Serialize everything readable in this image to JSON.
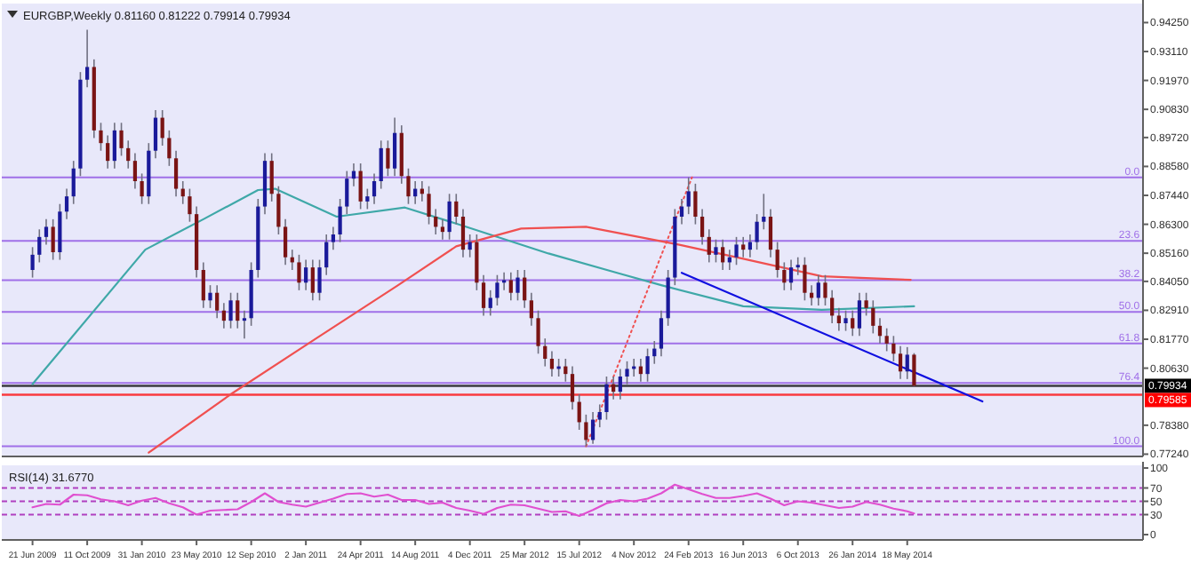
{
  "chart_data": [
    {
      "type": "candlestick",
      "title": "EURGBP,Weekly  0.81160 0.81222 0.79914 0.79934",
      "tick_labels": "y",
      "xlim": [
        "2009-04-19",
        "2015-09-13"
      ],
      "ylim": [
        0.7715,
        0.95
      ],
      "yticks": [
        {
          "value": 0.9425,
          "label": "0.94250"
        },
        {
          "value": 0.9311,
          "label": "0.93110"
        },
        {
          "value": 0.9197,
          "label": "0.91970"
        },
        {
          "value": 0.9083,
          "label": "0.90830"
        },
        {
          "value": 0.8972,
          "label": "0.89720"
        },
        {
          "value": 0.8858,
          "label": "0.88580"
        },
        {
          "value": 0.8744,
          "label": "0.87440"
        },
        {
          "value": 0.863,
          "label": "0.86300"
        },
        {
          "value": 0.8516,
          "label": "0.85160"
        },
        {
          "value": 0.8405,
          "label": "0.84050"
        },
        {
          "value": 0.8291,
          "label": "0.82910"
        },
        {
          "value": 0.8177,
          "label": "0.81770"
        },
        {
          "value": 0.8063,
          "label": "0.80630"
        },
        {
          "value": 0.7838,
          "label": "0.78380"
        },
        {
          "value": 0.7724,
          "label": "0.77240"
        }
      ],
      "x": [
        "2009-06-21",
        "2009-07-05",
        "2009-07-19",
        "2009-08-02",
        "2009-08-16",
        "2009-08-30",
        "2009-09-13",
        "2009-09-27",
        "2009-10-11",
        "2009-10-25",
        "2009-11-08",
        "2009-11-22",
        "2009-12-06",
        "2009-12-20",
        "2010-01-03",
        "2010-01-17",
        "2010-01-31",
        "2010-02-14",
        "2010-02-28",
        "2010-03-14",
        "2010-03-28",
        "2010-04-11",
        "2010-04-25",
        "2010-05-09",
        "2010-05-23",
        "2010-06-06",
        "2010-06-20",
        "2010-07-04",
        "2010-07-18",
        "2010-08-01",
        "2010-08-15",
        "2010-08-29",
        "2010-09-12",
        "2010-09-26",
        "2010-10-10",
        "2010-10-24",
        "2010-11-07",
        "2010-11-21",
        "2010-12-05",
        "2010-12-19",
        "2011-01-02",
        "2011-01-16",
        "2011-01-30",
        "2011-02-13",
        "2011-02-27",
        "2011-03-13",
        "2011-03-27",
        "2011-04-10",
        "2011-04-24",
        "2011-05-08",
        "2011-05-22",
        "2011-06-05",
        "2011-06-19",
        "2011-07-03",
        "2011-07-17",
        "2011-07-31",
        "2011-08-14",
        "2011-08-28",
        "2011-09-11",
        "2011-09-25",
        "2011-10-09",
        "2011-10-23",
        "2011-11-06",
        "2011-11-20",
        "2011-12-04",
        "2011-12-18",
        "2012-01-01",
        "2012-01-15",
        "2012-01-29",
        "2012-02-12",
        "2012-02-26",
        "2012-03-11",
        "2012-03-25",
        "2012-04-08",
        "2012-04-22",
        "2012-05-06",
        "2012-05-20",
        "2012-06-03",
        "2012-06-17",
        "2012-07-01",
        "2012-07-15",
        "2012-07-29",
        "2012-08-12",
        "2012-08-26",
        "2012-09-09",
        "2012-09-23",
        "2012-10-07",
        "2012-10-21",
        "2012-11-04",
        "2012-11-18",
        "2012-12-02",
        "2012-12-16",
        "2012-12-30",
        "2013-01-13",
        "2013-01-27",
        "2013-02-10",
        "2013-02-24",
        "2013-03-10",
        "2013-03-24",
        "2013-04-07",
        "2013-04-21",
        "2013-05-05",
        "2013-05-19",
        "2013-06-02",
        "2013-06-16",
        "2013-06-30",
        "2013-07-14",
        "2013-07-28",
        "2013-08-11",
        "2013-08-25",
        "2013-09-08",
        "2013-09-22",
        "2013-10-06",
        "2013-10-20",
        "2013-11-03",
        "2013-11-17",
        "2013-12-01",
        "2013-12-15",
        "2013-12-29",
        "2014-01-12",
        "2014-01-26",
        "2014-02-09",
        "2014-02-23",
        "2014-03-09",
        "2014-03-23",
        "2014-04-06",
        "2014-04-20",
        "2014-05-04",
        "2014-05-18",
        "2014-06-01"
      ],
      "ohlc": [
        [
          0.845,
          0.854,
          0.842,
          0.851
        ],
        [
          0.851,
          0.861,
          0.848,
          0.858
        ],
        [
          0.858,
          0.865,
          0.855,
          0.862
        ],
        [
          0.862,
          0.865,
          0.849,
          0.852
        ],
        [
          0.852,
          0.871,
          0.849,
          0.868
        ],
        [
          0.868,
          0.877,
          0.865,
          0.874
        ],
        [
          0.874,
          0.888,
          0.871,
          0.885
        ],
        [
          0.885,
          0.923,
          0.882,
          0.92
        ],
        [
          0.92,
          0.9397,
          0.917,
          0.925
        ],
        [
          0.925,
          0.928,
          0.897,
          0.9
        ],
        [
          0.9,
          0.903,
          0.892,
          0.895
        ],
        [
          0.895,
          0.898,
          0.885,
          0.888
        ],
        [
          0.888,
          0.903,
          0.885,
          0.9
        ],
        [
          0.9,
          0.903,
          0.89,
          0.893
        ],
        [
          0.893,
          0.896,
          0.885,
          0.888
        ],
        [
          0.888,
          0.891,
          0.877,
          0.88
        ],
        [
          0.88,
          0.883,
          0.871,
          0.874
        ],
        [
          0.874,
          0.895,
          0.871,
          0.892
        ],
        [
          0.892,
          0.908,
          0.889,
          0.905
        ],
        [
          0.905,
          0.908,
          0.894,
          0.897
        ],
        [
          0.897,
          0.9,
          0.886,
          0.889
        ],
        [
          0.889,
          0.892,
          0.874,
          0.877
        ],
        [
          0.877,
          0.88,
          0.871,
          0.874
        ],
        [
          0.874,
          0.877,
          0.864,
          0.867
        ],
        [
          0.867,
          0.87,
          0.842,
          0.845
        ],
        [
          0.845,
          0.848,
          0.83,
          0.833
        ],
        [
          0.833,
          0.839,
          0.83,
          0.836
        ],
        [
          0.836,
          0.839,
          0.826,
          0.829
        ],
        [
          0.829,
          0.832,
          0.822,
          0.825
        ],
        [
          0.825,
          0.836,
          0.822,
          0.833
        ],
        [
          0.833,
          0.836,
          0.822,
          0.825
        ],
        [
          0.825,
          0.829,
          0.818,
          0.826
        ],
        [
          0.826,
          0.848,
          0.823,
          0.845
        ],
        [
          0.845,
          0.873,
          0.842,
          0.87
        ],
        [
          0.87,
          0.891,
          0.867,
          0.888
        ],
        [
          0.888,
          0.891,
          0.872,
          0.875
        ],
        [
          0.875,
          0.878,
          0.859,
          0.862
        ],
        [
          0.862,
          0.865,
          0.847,
          0.85
        ],
        [
          0.85,
          0.853,
          0.845,
          0.848
        ],
        [
          0.848,
          0.851,
          0.837,
          0.84
        ],
        [
          0.84,
          0.849,
          0.837,
          0.846
        ],
        [
          0.846,
          0.849,
          0.833,
          0.836
        ],
        [
          0.836,
          0.849,
          0.833,
          0.846
        ],
        [
          0.846,
          0.859,
          0.843,
          0.856
        ],
        [
          0.856,
          0.862,
          0.853,
          0.859
        ],
        [
          0.859,
          0.873,
          0.856,
          0.87
        ],
        [
          0.87,
          0.884,
          0.867,
          0.881
        ],
        [
          0.881,
          0.887,
          0.878,
          0.884
        ],
        [
          0.884,
          0.887,
          0.869,
          0.872
        ],
        [
          0.872,
          0.877,
          0.869,
          0.874
        ],
        [
          0.874,
          0.883,
          0.871,
          0.88
        ],
        [
          0.88,
          0.896,
          0.877,
          0.893
        ],
        [
          0.893,
          0.896,
          0.882,
          0.885
        ],
        [
          0.885,
          0.905,
          0.882,
          0.899
        ],
        [
          0.899,
          0.902,
          0.879,
          0.882
        ],
        [
          0.882,
          0.885,
          0.871,
          0.874
        ],
        [
          0.874,
          0.88,
          0.871,
          0.877
        ],
        [
          0.877,
          0.88,
          0.872,
          0.875
        ],
        [
          0.875,
          0.878,
          0.863,
          0.866
        ],
        [
          0.866,
          0.869,
          0.859,
          0.862
        ],
        [
          0.862,
          0.865,
          0.857,
          0.86
        ],
        [
          0.86,
          0.875,
          0.857,
          0.872
        ],
        [
          0.872,
          0.875,
          0.863,
          0.866
        ],
        [
          0.866,
          0.869,
          0.85,
          0.853
        ],
        [
          0.853,
          0.859,
          0.85,
          0.856
        ],
        [
          0.856,
          0.859,
          0.837,
          0.84
        ],
        [
          0.84,
          0.843,
          0.827,
          0.83
        ],
        [
          0.83,
          0.837,
          0.827,
          0.834
        ],
        [
          0.834,
          0.843,
          0.831,
          0.84
        ],
        [
          0.84,
          0.844,
          0.837,
          0.841
        ],
        [
          0.841,
          0.844,
          0.833,
          0.836
        ],
        [
          0.836,
          0.845,
          0.833,
          0.842
        ],
        [
          0.842,
          0.845,
          0.83,
          0.833
        ],
        [
          0.833,
          0.836,
          0.823,
          0.826
        ],
        [
          0.826,
          0.829,
          0.812,
          0.815
        ],
        [
          0.815,
          0.818,
          0.807,
          0.81
        ],
        [
          0.81,
          0.813,
          0.803,
          0.806
        ],
        [
          0.806,
          0.81,
          0.803,
          0.807
        ],
        [
          0.807,
          0.81,
          0.801,
          0.804
        ],
        [
          0.804,
          0.807,
          0.79,
          0.793
        ],
        [
          0.793,
          0.796,
          0.782,
          0.785
        ],
        [
          0.785,
          0.788,
          0.7755,
          0.778
        ],
        [
          0.778,
          0.789,
          0.7765,
          0.786
        ],
        [
          0.786,
          0.792,
          0.783,
          0.789
        ],
        [
          0.789,
          0.803,
          0.786,
          0.8
        ],
        [
          0.8,
          0.803,
          0.794,
          0.797
        ],
        [
          0.797,
          0.806,
          0.794,
          0.803
        ],
        [
          0.803,
          0.809,
          0.8,
          0.806
        ],
        [
          0.806,
          0.81,
          0.803,
          0.807
        ],
        [
          0.807,
          0.81,
          0.801,
          0.804
        ],
        [
          0.804,
          0.814,
          0.801,
          0.811
        ],
        [
          0.811,
          0.817,
          0.808,
          0.814
        ],
        [
          0.814,
          0.829,
          0.811,
          0.826
        ],
        [
          0.826,
          0.845,
          0.823,
          0.842
        ],
        [
          0.842,
          0.869,
          0.839,
          0.866
        ],
        [
          0.866,
          0.873,
          0.863,
          0.87
        ],
        [
          0.87,
          0.8815,
          0.867,
          0.876
        ],
        [
          0.876,
          0.879,
          0.863,
          0.866
        ],
        [
          0.866,
          0.869,
          0.855,
          0.858
        ],
        [
          0.858,
          0.861,
          0.848,
          0.851
        ],
        [
          0.851,
          0.857,
          0.848,
          0.854
        ],
        [
          0.854,
          0.857,
          0.845,
          0.848
        ],
        [
          0.848,
          0.853,
          0.845,
          0.85
        ],
        [
          0.85,
          0.858,
          0.847,
          0.855
        ],
        [
          0.855,
          0.858,
          0.85,
          0.853
        ],
        [
          0.853,
          0.859,
          0.85,
          0.856
        ],
        [
          0.856,
          0.867,
          0.853,
          0.864
        ],
        [
          0.864,
          0.875,
          0.861,
          0.866
        ],
        [
          0.866,
          0.869,
          0.85,
          0.853
        ],
        [
          0.853,
          0.856,
          0.842,
          0.845
        ],
        [
          0.845,
          0.848,
          0.837,
          0.84
        ],
        [
          0.84,
          0.849,
          0.837,
          0.846
        ],
        [
          0.846,
          0.85,
          0.843,
          0.847
        ],
        [
          0.847,
          0.85,
          0.833,
          0.836
        ],
        [
          0.836,
          0.839,
          0.831,
          0.834
        ],
        [
          0.834,
          0.843,
          0.831,
          0.84
        ],
        [
          0.84,
          0.843,
          0.831,
          0.834
        ],
        [
          0.834,
          0.837,
          0.824,
          0.827
        ],
        [
          0.827,
          0.83,
          0.821,
          0.824
        ],
        [
          0.824,
          0.829,
          0.821,
          0.826
        ],
        [
          0.826,
          0.829,
          0.819,
          0.822
        ],
        [
          0.822,
          0.836,
          0.819,
          0.833
        ],
        [
          0.833,
          0.836,
          0.827,
          0.83
        ],
        [
          0.83,
          0.833,
          0.82,
          0.823
        ],
        [
          0.823,
          0.826,
          0.816,
          0.819
        ],
        [
          0.819,
          0.822,
          0.813,
          0.816
        ],
        [
          0.816,
          0.819,
          0.809,
          0.812
        ],
        [
          0.812,
          0.815,
          0.802,
          0.805
        ],
        [
          0.805,
          0.8146,
          0.802,
          0.8116
        ],
        [
          0.8116,
          0.81222,
          0.79914,
          0.79934
        ]
      ],
      "series": [
        {
          "type": "line",
          "color": "#3fa8a8",
          "x": [
            "2009-06-21",
            "2010-02-07",
            "2010-06-06",
            "2010-09-26",
            "2010-10-31",
            "2011-03-06",
            "2011-07-24",
            "2011-11-27",
            "2012-05-13",
            "2012-10-07",
            "2012-12-30",
            "2013-06-16",
            "2013-11-24",
            "2014-06-01"
          ],
          "values": [
            0.8,
            0.853,
            0.865,
            0.8765,
            0.877,
            0.866,
            0.8696,
            0.862,
            0.8515,
            0.8435,
            0.839,
            0.8307,
            0.8293,
            0.8307
          ]
        },
        {
          "type": "line",
          "color": "#f05050",
          "x": [
            "2010-02-14",
            "2010-08-01",
            "2011-01-23",
            "2011-07-10",
            "2011-11-06",
            "2012-03-18",
            "2012-07-29",
            "2013-02-03",
            "2013-06-16",
            "2013-11-24",
            "2014-05-25"
          ],
          "values": [
            0.773,
            0.796,
            0.818,
            0.839,
            0.8543,
            0.8613,
            0.862,
            0.855,
            0.8494,
            0.8425,
            0.8411
          ]
        },
        {
          "type": "line",
          "color": "#1010e0",
          "x": [
            "2013-02-10",
            "2014-10-19"
          ],
          "values": [
            0.8439,
            0.7932
          ]
        },
        {
          "type": "line",
          "color": "#f05050",
          "line_style": "dotted",
          "x": [
            "2012-07-29",
            "2013-03-03"
          ],
          "values": [
            0.7755,
            0.8815
          ]
        }
      ],
      "annotations": [
        {
          "text": "0.0",
          "x": "2015-09-06",
          "y": 0.8815
        },
        {
          "text": "23.6",
          "x": "2015-09-06",
          "y": 0.8565
        },
        {
          "text": "38.2",
          "x": "2015-09-06",
          "y": 0.841
        },
        {
          "text": "50.0",
          "x": "2015-09-06",
          "y": 0.8285
        },
        {
          "text": "61.8",
          "x": "2015-09-06",
          "y": 0.816
        },
        {
          "text": "76.4",
          "x": "2015-09-06",
          "y": 0.8005
        },
        {
          "text": "100.0",
          "x": "2015-09-06",
          "y": 0.7755
        }
      ],
      "ref_lines": [
        {
          "axis": "y",
          "value": 0.8815
        },
        {
          "axis": "y",
          "value": 0.8565
        },
        {
          "axis": "y",
          "value": 0.841
        },
        {
          "axis": "y",
          "value": 0.8285
        },
        {
          "axis": "y",
          "value": 0.816
        },
        {
          "axis": "y",
          "value": 0.8005
        },
        {
          "axis": "y",
          "value": 0.7755
        },
        {
          "axis": "y",
          "value": 0.79934,
          "label": "0.79934",
          "color": "#000000"
        },
        {
          "axis": "y",
          "value": 0.79585,
          "label": "0.79585",
          "color": "#ff0000"
        }
      ]
    },
    {
      "type": "line",
      "title": "RSI(14) 31.6770",
      "xlim": [
        "2009-04-19",
        "2015-09-13"
      ],
      "ylim": [
        -8,
        104
      ],
      "yticks": [
        0,
        30,
        50,
        70,
        100
      ],
      "xticks": [
        {
          "value": "2009-06-21",
          "label": "21 Jun 2009"
        },
        {
          "value": "2009-10-11",
          "label": "11 Oct 2009"
        },
        {
          "value": "2010-01-31",
          "label": "31 Jan 2010"
        },
        {
          "value": "2010-05-23",
          "label": "23 May 2010"
        },
        {
          "value": "2010-09-12",
          "label": "12 Sep 2010"
        },
        {
          "value": "2011-01-02",
          "label": "2 Jan 2011"
        },
        {
          "value": "2011-04-24",
          "label": "24 Apr 2011"
        },
        {
          "value": "2011-08-14",
          "label": "14 Aug 2011"
        },
        {
          "value": "2011-12-04",
          "label": "4 Dec 2011"
        },
        {
          "value": "2012-03-25",
          "label": "25 Mar 2012"
        },
        {
          "value": "2012-07-15",
          "label": "15 Jul 2012"
        },
        {
          "value": "2012-11-04",
          "label": "4 Nov 2012"
        },
        {
          "value": "2013-02-24",
          "label": "24 Feb 2013"
        },
        {
          "value": "2013-06-16",
          "label": "16 Jun 2013"
        },
        {
          "value": "2013-10-06",
          "label": "6 Oct 2013"
        },
        {
          "value": "2014-01-26",
          "label": "26 Jan 2014"
        },
        {
          "value": "2014-05-18",
          "label": "18 May 2014"
        }
      ],
      "x": [
        "2009-06-21",
        "2009-07-19",
        "2009-08-16",
        "2009-09-13",
        "2009-10-11",
        "2009-11-08",
        "2009-12-06",
        "2010-01-03",
        "2010-01-31",
        "2010-02-28",
        "2010-03-28",
        "2010-04-25",
        "2010-05-23",
        "2010-06-20",
        "2010-07-18",
        "2010-08-15",
        "2010-09-12",
        "2010-10-10",
        "2010-11-07",
        "2010-12-05",
        "2011-01-02",
        "2011-01-30",
        "2011-02-27",
        "2011-03-27",
        "2011-04-24",
        "2011-05-22",
        "2011-06-19",
        "2011-07-17",
        "2011-08-14",
        "2011-09-11",
        "2011-10-09",
        "2011-11-06",
        "2011-12-04",
        "2012-01-01",
        "2012-01-29",
        "2012-02-26",
        "2012-03-25",
        "2012-04-22",
        "2012-05-20",
        "2012-06-17",
        "2012-07-15",
        "2012-08-12",
        "2012-09-09",
        "2012-10-07",
        "2012-11-04",
        "2012-12-02",
        "2012-12-30",
        "2013-01-27",
        "2013-02-24",
        "2013-03-24",
        "2013-04-21",
        "2013-05-19",
        "2013-06-16",
        "2013-07-14",
        "2013-08-11",
        "2013-09-08",
        "2013-10-06",
        "2013-11-03",
        "2013-12-01",
        "2013-12-29",
        "2014-01-26",
        "2014-02-23",
        "2014-03-23",
        "2014-04-20",
        "2014-05-18",
        "2014-06-01"
      ],
      "series": [
        {
          "color": "#e050d0",
          "values": [
            41,
            46,
            45,
            60,
            59,
            53,
            50,
            44,
            51,
            55,
            47,
            41,
            30,
            36,
            37,
            38,
            49,
            62,
            49,
            45,
            42,
            48,
            54,
            61,
            62,
            57,
            60,
            52,
            52,
            46,
            48,
            40,
            36,
            31,
            40,
            45,
            44,
            39,
            34,
            35,
            28,
            37,
            47,
            52,
            50,
            54,
            62,
            75,
            68,
            61,
            55,
            55,
            58,
            62,
            54,
            44,
            50,
            48,
            44,
            40,
            42,
            49,
            45,
            39,
            35,
            31.7
          ]
        }
      ],
      "ref_lines": [
        {
          "axis": "y",
          "value": 70,
          "color": "#b040c0",
          "line_style": "dashed"
        },
        {
          "axis": "y",
          "value": 50,
          "color": "#b040c0",
          "line_style": "dashed"
        },
        {
          "axis": "y",
          "value": 30,
          "color": "#b040c0",
          "line_style": "dashed"
        }
      ]
    }
  ]
}
